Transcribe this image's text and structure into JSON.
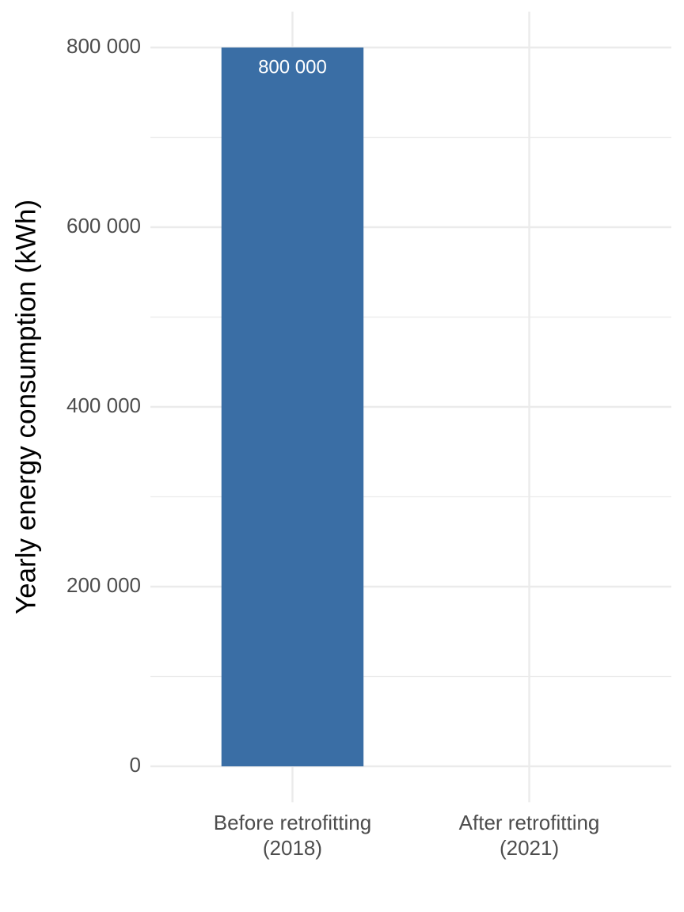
{
  "chart_data": {
    "type": "bar",
    "y_label": "Yearly energy consumption (kWh)",
    "categories": [
      "Before retrofitting\n(2018)",
      "After retrofitting\n(2021)"
    ],
    "values": [
      800000,
      null
    ],
    "value_labels": [
      "800 000",
      null
    ],
    "color": "#3a6ea5",
    "ylim": [
      -40000,
      840000
    ],
    "yticks": [
      {
        "value": 0,
        "label": "0"
      },
      {
        "value": 200000,
        "label": "200 000"
      },
      {
        "value": 400000,
        "label": "400 000"
      },
      {
        "value": 600000,
        "label": "600 000"
      },
      {
        "value": 800000,
        "label": "800 000"
      }
    ],
    "minor_yticks": [
      100000,
      300000,
      500000,
      700000
    ],
    "grid": true
  }
}
